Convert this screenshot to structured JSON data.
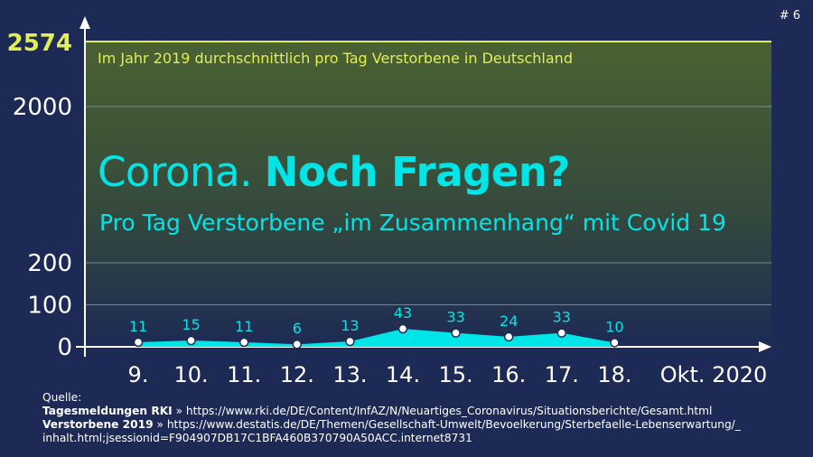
{
  "page_number": "# 6",
  "headline": {
    "part1": "Corona.",
    "part2": "Noch Fragen?"
  },
  "subline": "Pro Tag Verstorbene „im Zusammenhang“ mit Covid 19",
  "reference": {
    "label": "Im Jahr 2019 durchschnittlich pro Tag Verstorbene in Deutschland",
    "value": 2574,
    "value_label": "2574"
  },
  "chart_data": {
    "type": "area",
    "categories": [
      "9.",
      "10.",
      "11.",
      "12.",
      "13.",
      "14.",
      "15.",
      "16.",
      "17.",
      "18."
    ],
    "values": [
      11,
      15,
      11,
      6,
      13,
      43,
      33,
      24,
      33,
      10
    ],
    "value_labels": [
      "11",
      "15",
      "11",
      "6",
      "13",
      "43",
      "33",
      "24",
      "33",
      "10"
    ],
    "x_unit_label": "Okt. 2020",
    "y_ticks": [
      "0",
      "100",
      "200",
      "2000"
    ],
    "y_tick_values": [
      0,
      100,
      200,
      2000
    ],
    "y_scale": "broken axis (0–200 linear, then compressed to 2574)",
    "ylim": [
      0,
      2574
    ],
    "grid": true,
    "colors": {
      "series": "#00e5e8",
      "reference": "#e2ee55",
      "background": "#1d2a55"
    }
  },
  "sources": {
    "heading": "Quelle:",
    "items": [
      {
        "name": "Tagesmeldungen RKI",
        "text": " » https://www.rki.de/DE/Content/InfAZ/N/Neuartiges_Coronavirus/Situationsberichte/Gesamt.html"
      },
      {
        "name": "Verstorbene 2019",
        "text": " » https://www.destatis.de/DE/Themen/Gesellschaft-Umwelt/Bevoelkerung/Sterbefaelle-Lebenserwartung/_"
      },
      {
        "name": "",
        "text": "inhalt.html;jsessionid=F904907DB17C1BFA460B370790A50ACC.internet8731"
      }
    ]
  }
}
